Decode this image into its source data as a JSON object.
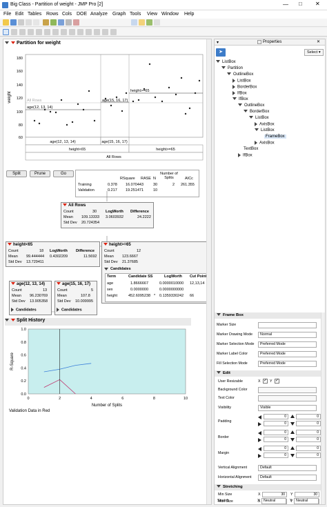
{
  "window": {
    "title": "Big Class - Partition of weight - JMP Pro [2]"
  },
  "menu": [
    "File",
    "Edit",
    "Tables",
    "Rows",
    "Cols",
    "DOE",
    "Analyze",
    "Graph",
    "Tools",
    "View",
    "Window",
    "Help"
  ],
  "report": {
    "title": "Partition for weight",
    "plot": {
      "ylabel": "weight",
      "yticks": [
        "180",
        "160",
        "140",
        "120",
        "100",
        "80",
        "60"
      ],
      "labels": {
        "all_rows": "All Rows",
        "age_left": "age(12, 13, 14)",
        "age_right": "age(15, 16, 17)",
        "height_ge": "height>=65"
      },
      "xaxis_groups": {
        "left_age": "age(12, 13, 14)",
        "right_age": "age(15, 16, 17)",
        "height_lt": "height<65",
        "height_ge": "height>=65",
        "all_rows": "All Rows"
      }
    },
    "buttons": {
      "split": "Split",
      "prune": "Prune",
      "go": "Go"
    },
    "summary": {
      "headers": [
        "",
        "RSquare",
        "RASE",
        "N",
        "Number of Splits",
        "AICc"
      ],
      "rows": [
        [
          "Training",
          "0.378",
          "16.070443",
          "30",
          "2",
          "261.355"
        ],
        [
          "Validation",
          "0.217",
          "19.251471",
          "10",
          "",
          ""
        ]
      ]
    },
    "nodes": {
      "all": {
        "title": "All Rows",
        "count_label": "Count",
        "count": "30",
        "mean_label": "Mean",
        "mean": "109.13333",
        "sd_label": "Std Dev",
        "sd": "20.724354",
        "lw_label": "LogWorth",
        "lw": "3.0603932",
        "diff_label": "Difference",
        "diff": "24.2222"
      },
      "lt65": {
        "title": "height<65",
        "count": "18",
        "mean": "99.444444",
        "sd": "13.729411",
        "lw": "0.4302209",
        "diff": "11.5692"
      },
      "ge65": {
        "title": "height>=65",
        "count": "12",
        "mean": "123.6667",
        "sd": "21.37685"
      },
      "age_low": {
        "title": "age(12, 13, 14)",
        "count": "13",
        "mean": "96.230769",
        "sd": "13.905358"
      },
      "age_high": {
        "title": "age(15, 16, 17)",
        "count": "5",
        "mean": "107.8",
        "sd": "10.009995"
      },
      "candidates_label": "Candidates",
      "candidates": {
        "headers": [
          "Term",
          "Candidate SS",
          "LogWorth",
          "Cut Point"
        ],
        "rows": [
          [
            "age",
            "1.8666667",
            "0.0000010000",
            "12,13,14"
          ],
          [
            "sex",
            "0.0000000",
            "0.0000000000",
            ""
          ],
          [
            "height",
            "452.6095238",
            "0.1359330242",
            "66"
          ]
        ],
        "height_marker": "*"
      }
    },
    "split_history": {
      "title": "Split History",
      "ylabel": "R-Square",
      "xlabel": "Number of Splits",
      "note": "Validation Data in Red",
      "yticks": [
        "1.0",
        "0.8",
        "0.6",
        "0.4",
        "0.2",
        "0.0"
      ],
      "xticks": [
        "0",
        "2",
        "4",
        "6",
        "8",
        "10"
      ]
    }
  },
  "chart_data": {
    "type": "line",
    "title": "Split History",
    "xlabel": "Number of Splits",
    "ylabel": "R-Square",
    "xlim": [
      0,
      10
    ],
    "ylim": [
      0,
      1
    ],
    "series": [
      {
        "name": "Training",
        "color": "#3a7fd9",
        "x": [
          1,
          2,
          3,
          4
        ],
        "y": [
          0.34,
          0.38,
          0.44,
          0.47
        ]
      },
      {
        "name": "Validation",
        "color": "#c0306a",
        "x": [
          1,
          2,
          3
        ],
        "y": [
          0.1,
          0.22,
          0.0
        ]
      }
    ],
    "selected_x": 2
  },
  "properties": {
    "title": "Properties",
    "select_label": "Select",
    "tree": [
      "ListBox",
      "Partition",
      "OutlineBox",
      "ListBox",
      "BorderBox",
      "IfBox",
      "IfBox",
      "OutlineBox",
      "BorderBox",
      "ListBox",
      "AxisBox",
      "ListBox",
      "FrameBox",
      "AxisBox",
      "TextBox",
      "IfBox"
    ],
    "section_frame": "Frame Box",
    "rows": [
      {
        "label": "Marker Size",
        "value": ""
      },
      {
        "label": "Marker Drawing Mode",
        "value": "Normal"
      },
      {
        "label": "Marker Selection Mode",
        "value": "Preferred Mode"
      },
      {
        "label": "Marker Label Color",
        "value": "Preferred Mode"
      },
      {
        "label": "Fill Selection Mode",
        "value": "Preferred Mode"
      }
    ],
    "section_edit": "Edit",
    "user_resizable": "User Resizable",
    "xy": [
      "X",
      "Y"
    ],
    "background_color": "Background Color",
    "text_color": "Text Color",
    "visibility_label": "Visibility",
    "visibility_value": "Visible",
    "padding": "Padding",
    "border": "Border",
    "margin": "Margin",
    "vertical_alignment": "Vertical Alignment",
    "horizontal_alignment": "Horizontal Alignment",
    "alignment_value": "Default",
    "zero": "0",
    "section_stretch": "Stretching",
    "min_size": "Min Size",
    "max_size": "Max Size",
    "stretch": "Stretch",
    "min_x": "30",
    "min_y": "30",
    "max_x": "10000",
    "max_y": "10000",
    "neutral": "Neutral"
  }
}
